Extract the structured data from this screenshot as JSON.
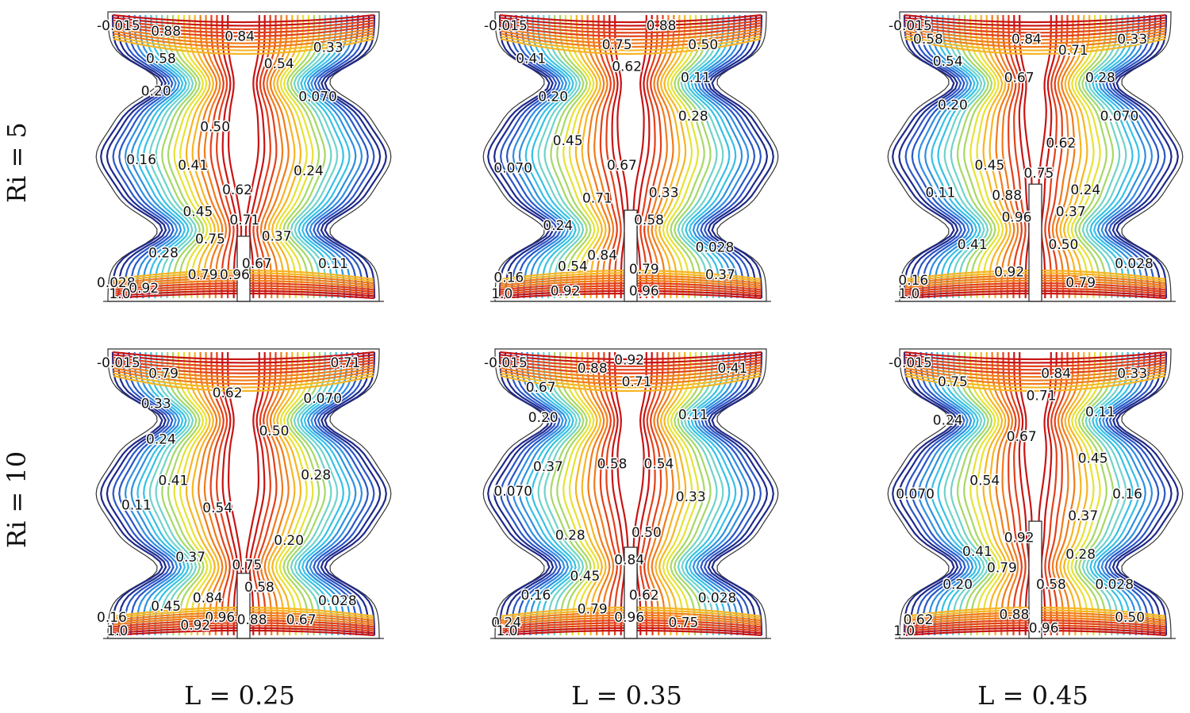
{
  "rows": [
    {
      "id": "ri5",
      "label": "Ri = 5"
    },
    {
      "id": "ri10",
      "label": "Ri = 10"
    }
  ],
  "columns": [
    {
      "id": "l025",
      "label": "L = 0.25",
      "heater_length": 0.25
    },
    {
      "id": "l035",
      "label": "L = 0.35",
      "heater_length": 0.35
    },
    {
      "id": "l045",
      "label": "L = 0.45",
      "heater_length": 0.45
    }
  ],
  "colormap": [
    "#1f2a8a",
    "#2a56c6",
    "#2f8fe0",
    "#36c0e6",
    "#6fd3c9",
    "#a6d866",
    "#e6e234",
    "#f6b524",
    "#f07c1c",
    "#e2401a",
    "#c81414"
  ],
  "panels": [
    {
      "row": 0,
      "col": 0,
      "labels": [
        {
          "text": "-0.015",
          "u": 0.0,
          "v": 0.98
        },
        {
          "text": "0.88",
          "u": 0.22,
          "v": 0.96
        },
        {
          "text": "0.84",
          "u": 0.52,
          "v": 0.94
        },
        {
          "text": "0.33",
          "u": 0.88,
          "v": 0.9
        },
        {
          "text": "0.58",
          "u": 0.2,
          "v": 0.86
        },
        {
          "text": "0.54",
          "u": 0.68,
          "v": 0.84
        },
        {
          "text": "0.20",
          "u": 0.18,
          "v": 0.74
        },
        {
          "text": "0.070",
          "u": 0.82,
          "v": 0.72
        },
        {
          "text": "0.50",
          "u": 0.42,
          "v": 0.61
        },
        {
          "text": "0.16",
          "u": 0.12,
          "v": 0.49
        },
        {
          "text": "0.41",
          "u": 0.33,
          "v": 0.47
        },
        {
          "text": "0.24",
          "u": 0.8,
          "v": 0.45
        },
        {
          "text": "0.62",
          "u": 0.51,
          "v": 0.38
        },
        {
          "text": "0.45",
          "u": 0.35,
          "v": 0.3
        },
        {
          "text": "0.71",
          "u": 0.54,
          "v": 0.27
        },
        {
          "text": "0.37",
          "u": 0.67,
          "v": 0.21
        },
        {
          "text": "0.75",
          "u": 0.4,
          "v": 0.2
        },
        {
          "text": "0.28",
          "u": 0.21,
          "v": 0.15
        },
        {
          "text": "0.67",
          "u": 0.59,
          "v": 0.11
        },
        {
          "text": "0.11",
          "u": 0.9,
          "v": 0.11
        },
        {
          "text": "0.79",
          "u": 0.37,
          "v": 0.07
        },
        {
          "text": "0.96",
          "u": 0.5,
          "v": 0.07
        },
        {
          "text": "0.028",
          "u": 0.0,
          "v": 0.04
        },
        {
          "text": "0.92",
          "u": 0.13,
          "v": 0.02
        },
        {
          "text": "1.0",
          "u": 0.05,
          "v": 0.0
        }
      ]
    },
    {
      "row": 0,
      "col": 1,
      "labels": [
        {
          "text": "-0.015",
          "u": 0.0,
          "v": 0.98
        },
        {
          "text": "0.88",
          "u": 0.66,
          "v": 0.98
        },
        {
          "text": "0.75",
          "u": 0.48,
          "v": 0.91
        },
        {
          "text": "0.50",
          "u": 0.83,
          "v": 0.91
        },
        {
          "text": "0.41",
          "u": 0.13,
          "v": 0.86
        },
        {
          "text": "0.62",
          "u": 0.52,
          "v": 0.83
        },
        {
          "text": "0.11",
          "u": 0.8,
          "v": 0.79
        },
        {
          "text": "0.20",
          "u": 0.22,
          "v": 0.72
        },
        {
          "text": "0.28",
          "u": 0.79,
          "v": 0.65
        },
        {
          "text": "0.45",
          "u": 0.28,
          "v": 0.56
        },
        {
          "text": "0.070",
          "u": 0.04,
          "v": 0.46
        },
        {
          "text": "0.67",
          "u": 0.5,
          "v": 0.47
        },
        {
          "text": "0.71",
          "u": 0.4,
          "v": 0.35
        },
        {
          "text": "0.33",
          "u": 0.67,
          "v": 0.37
        },
        {
          "text": "0.24",
          "u": 0.24,
          "v": 0.25
        },
        {
          "text": "0.58",
          "u": 0.61,
          "v": 0.27
        },
        {
          "text": "0.84",
          "u": 0.42,
          "v": 0.14
        },
        {
          "text": "0.028",
          "u": 0.86,
          "v": 0.17
        },
        {
          "text": "0.54",
          "u": 0.3,
          "v": 0.1
        },
        {
          "text": "0.79",
          "u": 0.59,
          "v": 0.09
        },
        {
          "text": "0.16",
          "u": 0.04,
          "v": 0.06
        },
        {
          "text": "0.37",
          "u": 0.9,
          "v": 0.07
        },
        {
          "text": "0.92",
          "u": 0.27,
          "v": 0.01
        },
        {
          "text": "0.96",
          "u": 0.59,
          "v": 0.01
        },
        {
          "text": "1.0",
          "u": 0.03,
          "v": 0.0
        }
      ]
    },
    {
      "row": 0,
      "col": 2,
      "labels": [
        {
          "text": "-0.015",
          "u": 0.0,
          "v": 0.98
        },
        {
          "text": "0.58",
          "u": 0.1,
          "v": 0.93
        },
        {
          "text": "0.84",
          "u": 0.5,
          "v": 0.93
        },
        {
          "text": "0.71",
          "u": 0.69,
          "v": 0.89
        },
        {
          "text": "0.33",
          "u": 0.93,
          "v": 0.93
        },
        {
          "text": "0.54",
          "u": 0.18,
          "v": 0.85
        },
        {
          "text": "0.67",
          "u": 0.47,
          "v": 0.79
        },
        {
          "text": "0.28",
          "u": 0.8,
          "v": 0.79
        },
        {
          "text": "0.20",
          "u": 0.2,
          "v": 0.69
        },
        {
          "text": "0.070",
          "u": 0.86,
          "v": 0.65
        },
        {
          "text": "0.62",
          "u": 0.64,
          "v": 0.55
        },
        {
          "text": "0.45",
          "u": 0.35,
          "v": 0.47
        },
        {
          "text": "0.75",
          "u": 0.55,
          "v": 0.44
        },
        {
          "text": "0.11",
          "u": 0.15,
          "v": 0.37
        },
        {
          "text": "0.88",
          "u": 0.42,
          "v": 0.36
        },
        {
          "text": "0.24",
          "u": 0.74,
          "v": 0.38
        },
        {
          "text": "0.96",
          "u": 0.46,
          "v": 0.28
        },
        {
          "text": "0.37",
          "u": 0.68,
          "v": 0.3
        },
        {
          "text": "0.41",
          "u": 0.28,
          "v": 0.18
        },
        {
          "text": "0.50",
          "u": 0.65,
          "v": 0.18
        },
        {
          "text": "0.028",
          "u": 0.92,
          "v": 0.11
        },
        {
          "text": "0.92",
          "u": 0.43,
          "v": 0.08
        },
        {
          "text": "0.16",
          "u": 0.04,
          "v": 0.05
        },
        {
          "text": "0.79",
          "u": 0.72,
          "v": 0.04
        },
        {
          "text": "1.0",
          "u": 0.04,
          "v": 0.0
        }
      ]
    },
    {
      "row": 1,
      "col": 0,
      "labels": [
        {
          "text": "-0.015",
          "u": 0.0,
          "v": 0.98
        },
        {
          "text": "0.71",
          "u": 0.95,
          "v": 0.98
        },
        {
          "text": "0.79",
          "u": 0.21,
          "v": 0.94
        },
        {
          "text": "0.62",
          "u": 0.47,
          "v": 0.87
        },
        {
          "text": "0.33",
          "u": 0.18,
          "v": 0.83
        },
        {
          "text": "0.070",
          "u": 0.84,
          "v": 0.85
        },
        {
          "text": "0.50",
          "u": 0.66,
          "v": 0.73
        },
        {
          "text": "0.24",
          "u": 0.2,
          "v": 0.7
        },
        {
          "text": "0.28",
          "u": 0.83,
          "v": 0.57
        },
        {
          "text": "0.41",
          "u": 0.25,
          "v": 0.55
        },
        {
          "text": "0.11",
          "u": 0.1,
          "v": 0.46
        },
        {
          "text": "0.54",
          "u": 0.43,
          "v": 0.45
        },
        {
          "text": "0.20",
          "u": 0.72,
          "v": 0.33
        },
        {
          "text": "0.37",
          "u": 0.32,
          "v": 0.27
        },
        {
          "text": "0.75",
          "u": 0.55,
          "v": 0.24
        },
        {
          "text": "0.58",
          "u": 0.6,
          "v": 0.16
        },
        {
          "text": "0.84",
          "u": 0.39,
          "v": 0.12
        },
        {
          "text": "0.45",
          "u": 0.22,
          "v": 0.09
        },
        {
          "text": "0.028",
          "u": 0.9,
          "v": 0.11
        },
        {
          "text": "0.96",
          "u": 0.44,
          "v": 0.05
        },
        {
          "text": "0.88",
          "u": 0.57,
          "v": 0.04
        },
        {
          "text": "0.67",
          "u": 0.77,
          "v": 0.04
        },
        {
          "text": "0.16",
          "u": 0.0,
          "v": 0.05
        },
        {
          "text": "0.92",
          "u": 0.34,
          "v": 0.02
        },
        {
          "text": "1.0",
          "u": 0.04,
          "v": 0.0
        }
      ]
    },
    {
      "row": 1,
      "col": 1,
      "labels": [
        {
          "text": "-0.015",
          "u": 0.0,
          "v": 0.98
        },
        {
          "text": "0.92",
          "u": 0.53,
          "v": 0.99
        },
        {
          "text": "0.88",
          "u": 0.38,
          "v": 0.96
        },
        {
          "text": "0.41",
          "u": 0.95,
          "v": 0.96
        },
        {
          "text": "0.71",
          "u": 0.56,
          "v": 0.91
        },
        {
          "text": "0.67",
          "u": 0.17,
          "v": 0.89
        },
        {
          "text": "0.11",
          "u": 0.79,
          "v": 0.79
        },
        {
          "text": "0.20",
          "u": 0.18,
          "v": 0.78
        },
        {
          "text": "0.37",
          "u": 0.2,
          "v": 0.6
        },
        {
          "text": "0.58",
          "u": 0.46,
          "v": 0.61
        },
        {
          "text": "0.54",
          "u": 0.65,
          "v": 0.61
        },
        {
          "text": "0.070",
          "u": 0.04,
          "v": 0.51
        },
        {
          "text": "0.33",
          "u": 0.78,
          "v": 0.49
        },
        {
          "text": "0.50",
          "u": 0.6,
          "v": 0.36
        },
        {
          "text": "0.28",
          "u": 0.29,
          "v": 0.35
        },
        {
          "text": "0.84",
          "u": 0.53,
          "v": 0.26
        },
        {
          "text": "0.45",
          "u": 0.35,
          "v": 0.2
        },
        {
          "text": "0.16",
          "u": 0.15,
          "v": 0.13
        },
        {
          "text": "0.62",
          "u": 0.59,
          "v": 0.13
        },
        {
          "text": "0.028",
          "u": 0.87,
          "v": 0.12
        },
        {
          "text": "0.79",
          "u": 0.38,
          "v": 0.08
        },
        {
          "text": "0.96",
          "u": 0.53,
          "v": 0.05
        },
        {
          "text": "0.75",
          "u": 0.75,
          "v": 0.03
        },
        {
          "text": "0.24",
          "u": 0.03,
          "v": 0.03
        },
        {
          "text": "1.0",
          "u": 0.05,
          "v": 0.0
        }
      ]
    },
    {
      "row": 1,
      "col": 2,
      "labels": [
        {
          "text": "-0.015",
          "u": 0.0,
          "v": 0.98
        },
        {
          "text": "0.84",
          "u": 0.62,
          "v": 0.94
        },
        {
          "text": "0.33",
          "u": 0.93,
          "v": 0.94
        },
        {
          "text": "0.75",
          "u": 0.2,
          "v": 0.91
        },
        {
          "text": "0.71",
          "u": 0.56,
          "v": 0.86
        },
        {
          "text": "0.11",
          "u": 0.8,
          "v": 0.8
        },
        {
          "text": "0.24",
          "u": 0.18,
          "v": 0.77
        },
        {
          "text": "0.67",
          "u": 0.48,
          "v": 0.71
        },
        {
          "text": "0.45",
          "u": 0.77,
          "v": 0.63
        },
        {
          "text": "0.54",
          "u": 0.33,
          "v": 0.55
        },
        {
          "text": "0.070",
          "u": 0.03,
          "v": 0.5
        },
        {
          "text": "0.16",
          "u": 0.91,
          "v": 0.5
        },
        {
          "text": "0.37",
          "u": 0.73,
          "v": 0.42
        },
        {
          "text": "0.92",
          "u": 0.47,
          "v": 0.34
        },
        {
          "text": "0.41",
          "u": 0.3,
          "v": 0.29
        },
        {
          "text": "0.28",
          "u": 0.72,
          "v": 0.28
        },
        {
          "text": "0.79",
          "u": 0.4,
          "v": 0.23
        },
        {
          "text": "0.58",
          "u": 0.6,
          "v": 0.17
        },
        {
          "text": "0.028",
          "u": 0.84,
          "v": 0.17
        },
        {
          "text": "0.20",
          "u": 0.22,
          "v": 0.17
        },
        {
          "text": "0.88",
          "u": 0.45,
          "v": 0.06
        },
        {
          "text": "0.62",
          "u": 0.06,
          "v": 0.04
        },
        {
          "text": "0.50",
          "u": 0.92,
          "v": 0.05
        },
        {
          "text": "0.96",
          "u": 0.57,
          "v": 0.01
        },
        {
          "text": "1.0",
          "u": 0.02,
          "v": 0.0
        }
      ]
    }
  ]
}
